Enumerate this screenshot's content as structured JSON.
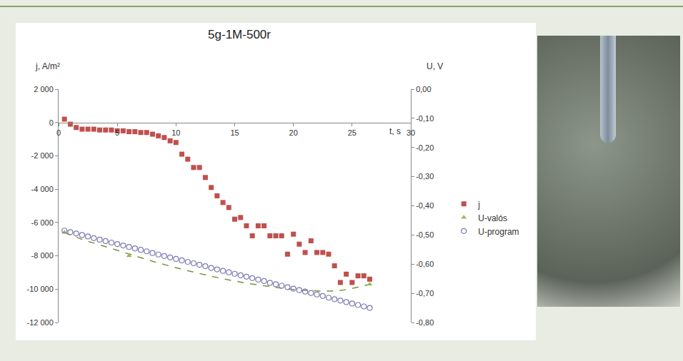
{
  "chart_data": {
    "type": "scatter",
    "title": "5g-1M-500r",
    "xlabel": "t, s",
    "ylabel": "j, A/m²",
    "y2label": "U, V",
    "xlim": [
      0,
      30
    ],
    "xticks": [
      0,
      5,
      10,
      15,
      20,
      25,
      30
    ],
    "ylim": [
      -12000,
      2000
    ],
    "yticks": [
      {
        "value": 2000,
        "label": "2 000"
      },
      0,
      {
        "value": -2000,
        "label": "-2 000"
      },
      {
        "value": -4000,
        "label": "-4 000"
      },
      {
        "value": -6000,
        "label": "-6 000"
      },
      {
        "value": -8000,
        "label": "-8 000"
      },
      {
        "value": -10000,
        "label": "-10 000"
      },
      {
        "value": -12000,
        "label": "-12 000"
      }
    ],
    "y2lim": [
      -0.8,
      0
    ],
    "y2ticks": [
      {
        "value": 0,
        "label": "0,00"
      },
      {
        "value": -0.1,
        "label": "-0,10"
      },
      {
        "value": -0.2,
        "label": "-0,20"
      },
      {
        "value": -0.3,
        "label": "-0,30"
      },
      {
        "value": -0.4,
        "label": "-0,40"
      },
      {
        "value": -0.5,
        "label": "-0,50"
      },
      {
        "value": -0.6,
        "label": "-0,60"
      },
      {
        "value": -0.7,
        "label": "-0,70"
      },
      {
        "value": -0.8,
        "label": "-0,80"
      }
    ],
    "grid": false,
    "legend": "right",
    "series": [
      {
        "axis": "y2",
        "color": "#77933c",
        "marker": "none",
        "line_style": "dashed",
        "x": [
          0.5,
          2,
          4,
          6,
          8,
          10,
          12,
          14,
          16,
          18,
          20,
          22,
          24,
          26.5
        ],
        "values": [
          -0.491,
          -0.515,
          -0.54,
          -0.565,
          -0.59,
          -0.612,
          -0.632,
          -0.65,
          -0.665,
          -0.677,
          -0.687,
          -0.692,
          -0.69,
          -0.669
        ]
      },
      {
        "name": "j",
        "color": "#c0504d",
        "marker": "square",
        "line_style": "none",
        "x": [
          0.5,
          1,
          1.5,
          2,
          2.5,
          3,
          3.5,
          4,
          4.5,
          5,
          5.5,
          6,
          6.5,
          7,
          7.5,
          8,
          8.5,
          9,
          9.5,
          10,
          10.5,
          11,
          11.5,
          12,
          12.5,
          13,
          13.5,
          14,
          14.5,
          15,
          15.5,
          16,
          16.5,
          17,
          17.5,
          18,
          18.5,
          19,
          19.5,
          20,
          20.5,
          21,
          21.5,
          22,
          22.5,
          23,
          23.5,
          24,
          24.5,
          25,
          25.5,
          26,
          26.5
        ],
        "values": [
          200,
          -100,
          -300,
          -400,
          -400,
          -400,
          -450,
          -450,
          -450,
          -500,
          -500,
          -550,
          -550,
          -600,
          -600,
          -700,
          -800,
          -900,
          -1100,
          -1200,
          -1900,
          -2200,
          -2700,
          -2700,
          -3300,
          -3900,
          -4400,
          -4800,
          -5100,
          -5800,
          -5700,
          -6200,
          -6800,
          -6200,
          -6200,
          -6800,
          -6800,
          -6800,
          -7900,
          -6700,
          -7300,
          -7800,
          -7100,
          -7800,
          -7800,
          -7900,
          -8600,
          -9600,
          -9100,
          -9600,
          -9200,
          -9200,
          -9400
        ]
      },
      {
        "name": "U-valós",
        "axis": "y2",
        "color": "#9bbb59",
        "marker": "triangle-up",
        "line_style": "none",
        "x": [
          0.5,
          6,
          26.5
        ],
        "values": [
          -0.491,
          -0.571,
          -0.669
        ]
      },
      {
        "name": "U-program",
        "axis": "y2",
        "color": "#7b7bb3",
        "marker": "circle-open",
        "line_style": "none",
        "x": [
          0.5,
          1,
          1.5,
          2,
          2.5,
          3,
          3.5,
          4,
          4.5,
          5,
          5.5,
          6,
          6.5,
          7,
          7.5,
          8,
          8.5,
          9,
          9.5,
          10,
          10.5,
          11,
          11.5,
          12,
          12.5,
          13,
          13.5,
          14,
          14.5,
          15,
          15.5,
          16,
          16.5,
          17,
          17.5,
          18,
          18.5,
          19,
          19.5,
          20,
          20.5,
          21,
          21.5,
          22,
          22.5,
          23,
          23.5,
          24,
          24.5,
          25,
          25.5,
          26,
          26.5
        ],
        "values": [
          -0.485,
          -0.49,
          -0.495,
          -0.5,
          -0.505,
          -0.511,
          -0.516,
          -0.521,
          -0.526,
          -0.531,
          -0.536,
          -0.541,
          -0.546,
          -0.551,
          -0.556,
          -0.562,
          -0.567,
          -0.572,
          -0.577,
          -0.582,
          -0.587,
          -0.592,
          -0.597,
          -0.602,
          -0.607,
          -0.613,
          -0.618,
          -0.623,
          -0.628,
          -0.633,
          -0.638,
          -0.643,
          -0.648,
          -0.653,
          -0.658,
          -0.664,
          -0.669,
          -0.674,
          -0.679,
          -0.684,
          -0.689,
          -0.694,
          -0.699,
          -0.704,
          -0.709,
          -0.715,
          -0.72,
          -0.725,
          -0.73,
          -0.735,
          -0.74,
          -0.745,
          -0.75
        ]
      }
    ]
  }
}
